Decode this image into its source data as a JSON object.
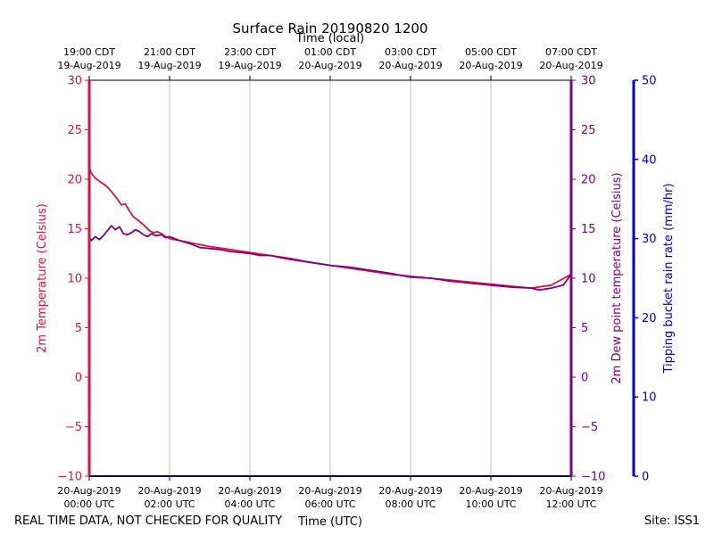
{
  "chart_data": {
    "type": "line",
    "title": "Surface Rain 20190820 1200",
    "top_xlabel": "Time (local)",
    "xlabel": "Time (UTC)",
    "footer_left": "REAL TIME DATA, NOT CHECKED FOR QUALITY",
    "footer_right": "Site: ISS1",
    "x_range_hours": [
      0,
      12
    ],
    "bottom_ticks": [
      {
        "h": 0,
        "date": "20-Aug-2019",
        "time": "00:00 UTC"
      },
      {
        "h": 2,
        "date": "20-Aug-2019",
        "time": "02:00 UTC"
      },
      {
        "h": 4,
        "date": "20-Aug-2019",
        "time": "04:00 UTC"
      },
      {
        "h": 6,
        "date": "20-Aug-2019",
        "time": "06:00 UTC"
      },
      {
        "h": 8,
        "date": "20-Aug-2019",
        "time": "08:00 UTC"
      },
      {
        "h": 10,
        "date": "20-Aug-2019",
        "time": "10:00 UTC"
      },
      {
        "h": 12,
        "date": "20-Aug-2019",
        "time": "12:00 UTC"
      }
    ],
    "top_ticks": [
      {
        "h": 0,
        "time": "19:00 CDT",
        "date": "19-Aug-2019"
      },
      {
        "h": 2,
        "time": "21:00 CDT",
        "date": "19-Aug-2019"
      },
      {
        "h": 4,
        "time": "23:00 CDT",
        "date": "19-Aug-2019"
      },
      {
        "h": 6,
        "time": "01:00 CDT",
        "date": "20-Aug-2019"
      },
      {
        "h": 8,
        "time": "03:00 CDT",
        "date": "20-Aug-2019"
      },
      {
        "h": 10,
        "time": "05:00 CDT",
        "date": "20-Aug-2019"
      },
      {
        "h": 12,
        "time": "07:00 CDT",
        "date": "20-Aug-2019"
      }
    ],
    "y_left": {
      "label": "2m Temperature (Celsius)",
      "range": [
        -10,
        30
      ],
      "ticks": [
        "30",
        "25",
        "20",
        "15",
        "10",
        "5",
        "0",
        "−5",
        "−10"
      ],
      "tick_values": [
        30,
        25,
        20,
        15,
        10,
        5,
        0,
        -5,
        -10
      ],
      "color": "#dc143c"
    },
    "y_right_inner": {
      "label": "2m Dew point temperature (Celsius)",
      "range": [
        -10,
        30
      ],
      "ticks": [
        "30",
        "25",
        "20",
        "15",
        "10",
        "5",
        "0",
        "−5",
        "−10"
      ],
      "tick_values": [
        30,
        25,
        20,
        15,
        10,
        5,
        0,
        -5,
        -10
      ],
      "color": "#800080"
    },
    "y_right_outer": {
      "label": "Tipping bucket rain rate (mm/hr)",
      "range": [
        0,
        50
      ],
      "ticks": [
        "50",
        "40",
        "30",
        "20",
        "10",
        "0"
      ],
      "tick_values": [
        50,
        40,
        30,
        20,
        10,
        0
      ],
      "color": "#0000cd"
    },
    "grid": "vertical",
    "series": [
      {
        "name": "2m Temperature (Celsius)",
        "color": "#dc143c",
        "x_hours": [
          0,
          0.05,
          0.15,
          0.25,
          0.4,
          0.5,
          0.6,
          0.7,
          0.8,
          0.9,
          1.0,
          1.1,
          1.2,
          1.35,
          1.5,
          1.6,
          1.7,
          1.8,
          1.9,
          2.0,
          2.5,
          3.0,
          3.5,
          4.0,
          4.5,
          5.0,
          5.5,
          6.0,
          6.5,
          7.0,
          7.5,
          8.0,
          8.5,
          9.0,
          9.5,
          10.0,
          10.5,
          11.0,
          11.5,
          12.0
        ],
        "y": [
          21.2,
          20.6,
          20.1,
          19.8,
          19.4,
          19.0,
          18.5,
          18.0,
          17.4,
          17.5,
          16.8,
          16.2,
          15.9,
          15.4,
          14.8,
          14.6,
          14.7,
          14.5,
          14.2,
          14.0,
          13.6,
          13.2,
          12.9,
          12.6,
          12.3,
          12.0,
          11.6,
          11.3,
          11.0,
          10.7,
          10.4,
          10.2,
          10.0,
          9.8,
          9.6,
          9.4,
          9.2,
          9.0,
          9.3,
          10.4
        ]
      },
      {
        "name": "2m Dew point temperature (Celsius)",
        "color": "#800080",
        "x_hours": [
          0,
          0.05,
          0.15,
          0.25,
          0.35,
          0.45,
          0.55,
          0.65,
          0.75,
          0.85,
          0.95,
          1.05,
          1.15,
          1.25,
          1.35,
          1.45,
          1.55,
          1.65,
          1.8,
          1.9,
          2.0,
          2.25,
          2.5,
          2.75,
          3.0,
          3.25,
          3.5,
          3.75,
          4.0,
          4.25,
          4.5,
          4.75,
          5.0,
          5.5,
          6.0,
          6.5,
          7.0,
          7.5,
          8.0,
          8.5,
          9.0,
          9.5,
          10.0,
          10.5,
          11.0,
          11.2,
          11.5,
          11.8,
          12.0
        ],
        "y": [
          14.1,
          13.8,
          14.2,
          13.9,
          14.3,
          14.8,
          15.3,
          14.9,
          15.2,
          14.5,
          14.4,
          14.6,
          14.9,
          14.7,
          14.4,
          14.2,
          14.5,
          14.3,
          14.4,
          14.1,
          14.2,
          13.8,
          13.5,
          13.1,
          13.0,
          12.9,
          12.7,
          12.6,
          12.5,
          12.3,
          12.3,
          12.1,
          11.9,
          11.6,
          11.3,
          11.1,
          10.8,
          10.5,
          10.1,
          10.0,
          9.7,
          9.5,
          9.3,
          9.1,
          9.0,
          8.8,
          9.0,
          9.3,
          10.4
        ]
      },
      {
        "name": "Tipping bucket rain rate (mm/hr)",
        "color": "#0000cd",
        "x_hours": [
          0,
          12
        ],
        "y": [
          0,
          0
        ]
      }
    ]
  }
}
